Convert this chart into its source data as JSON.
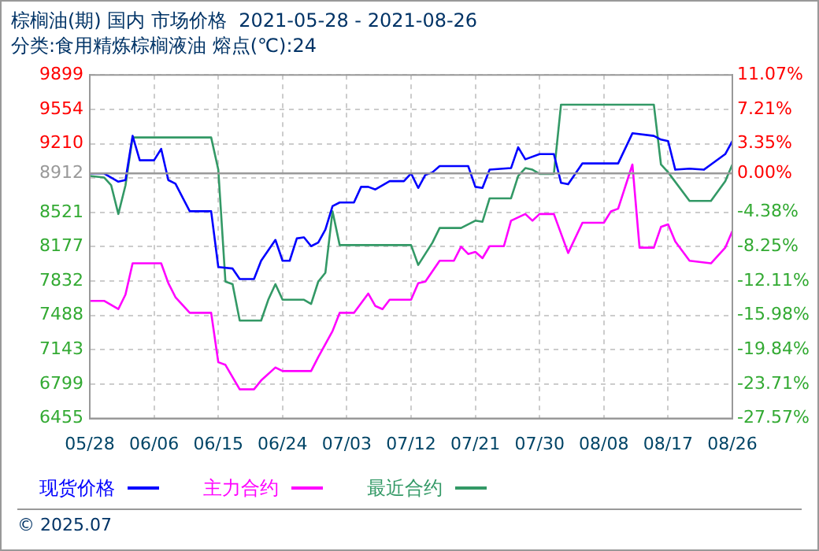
{
  "chart_data": {
    "type": "line",
    "title": "棕榈油(期) 国内 市场价格  2021-05-28 - 2021-08-26",
    "subtitle": "分类:食用精炼棕榈液油 熔点(℃):24",
    "annotations": [
      "© 2025.07"
    ],
    "xlim": [
      "2021-05-28",
      "2021-08-26"
    ],
    "xticks": [
      {
        "value": "2021-05-28",
        "label": "05/28"
      },
      {
        "value": "2021-06-06",
        "label": "06/06"
      },
      {
        "value": "2021-06-15",
        "label": "06/15"
      },
      {
        "value": "2021-06-24",
        "label": "06/24"
      },
      {
        "value": "2021-07-03",
        "label": "07/03"
      },
      {
        "value": "2021-07-12",
        "label": "07/12"
      },
      {
        "value": "2021-07-21",
        "label": "07/21"
      },
      {
        "value": "2021-07-30",
        "label": "07/30"
      },
      {
        "value": "2021-08-08",
        "label": "08/08"
      },
      {
        "value": "2021-08-17",
        "label": "08/17"
      },
      {
        "value": "2021-08-26",
        "label": "08/26"
      }
    ],
    "ylim": [
      6455,
      9899
    ],
    "yticks": [
      6455,
      6799,
      7143,
      7488,
      7832,
      8177,
      8521,
      {
        "value": 8866,
        "label": null
      },
      8912,
      9210,
      9554,
      9899
    ],
    "y2lim": [
      -27.57,
      11.07
    ],
    "y2ticks": [
      {
        "value": -27.57,
        "label": "-27.57%"
      },
      {
        "value": -23.71,
        "label": "-23.71%"
      },
      {
        "value": -19.84,
        "label": "-19.84%"
      },
      {
        "value": -15.98,
        "label": "-15.98%"
      },
      {
        "value": -12.11,
        "label": "-12.11%"
      },
      {
        "value": -8.25,
        "label": "-8.25%"
      },
      {
        "value": -4.38,
        "label": "-4.38%"
      },
      {
        "value": 0,
        "label": "0.00%"
      },
      {
        "value": 3.35,
        "label": "3.35%"
      },
      {
        "value": 7.21,
        "label": "7.21%"
      },
      {
        "value": 11.07,
        "label": "11.07%"
      }
    ],
    "ref_lines": [
      {
        "axis": "y",
        "value": 8912,
        "color": "#999999"
      }
    ],
    "grid": true,
    "legend": "bottom",
    "marker": "none",
    "line_style": "solid",
    "series": [
      {
        "name": "现货价格",
        "color": "#0000ff",
        "x": [
          "2021-05-28",
          "2021-05-30",
          "2021-06-01",
          "2021-06-02",
          "2021-06-03",
          "2021-06-04",
          "2021-06-06",
          "2021-06-07",
          "2021-06-08",
          "2021-06-09",
          "2021-06-11",
          "2021-06-14",
          "2021-06-15",
          "2021-06-17",
          "2021-06-18",
          "2021-06-20",
          "2021-06-21",
          "2021-06-23",
          "2021-06-24",
          "2021-06-25",
          "2021-06-26",
          "2021-06-27",
          "2021-06-28",
          "2021-06-29",
          "2021-06-30",
          "2021-07-01",
          "2021-07-02",
          "2021-07-04",
          "2021-07-05",
          "2021-07-06",
          "2021-07-07",
          "2021-07-09",
          "2021-07-11",
          "2021-07-12",
          "2021-07-13",
          "2021-07-14",
          "2021-07-15",
          "2021-07-16",
          "2021-07-20",
          "2021-07-21",
          "2021-07-22",
          "2021-07-23",
          "2021-07-26",
          "2021-07-27",
          "2021-07-28",
          "2021-07-30",
          "2021-08-01",
          "2021-08-02",
          "2021-08-03",
          "2021-08-05",
          "2021-08-10",
          "2021-08-12",
          "2021-08-15",
          "2021-08-16",
          "2021-08-17",
          "2021-08-18",
          "2021-08-20",
          "2021-08-22",
          "2021-08-23",
          "2021-08-25",
          "2021-08-26"
        ],
        "values": [
          8912,
          8912,
          8829,
          8845,
          9288,
          9043,
          9043,
          9157,
          8845,
          8808,
          8532,
          8532,
          7973,
          7958,
          7853,
          7853,
          8036,
          8245,
          8036,
          8036,
          8260,
          8271,
          8182,
          8219,
          8349,
          8584,
          8620,
          8620,
          8777,
          8777,
          8751,
          8834,
          8834,
          8912,
          8766,
          8897,
          8923,
          8985,
          8985,
          8777,
          8766,
          8949,
          8965,
          9173,
          9053,
          9105,
          9105,
          8818,
          8803,
          9012,
          9012,
          9314,
          9288,
          9251,
          9236,
          8949,
          8960,
          8949,
          9001,
          9105,
          9236
        ]
      },
      {
        "name": "主力合约",
        "color": "#ff00ff",
        "x": [
          "2021-05-28",
          "2021-05-30",
          "2021-06-01",
          "2021-06-02",
          "2021-06-03",
          "2021-06-07",
          "2021-06-08",
          "2021-06-09",
          "2021-06-11",
          "2021-06-14",
          "2021-06-15",
          "2021-06-16",
          "2021-06-18",
          "2021-06-20",
          "2021-06-21",
          "2021-06-23",
          "2021-06-24",
          "2021-06-28",
          "2021-06-29",
          "2021-07-01",
          "2021-07-02",
          "2021-07-04",
          "2021-07-06",
          "2021-07-07",
          "2021-07-08",
          "2021-07-09",
          "2021-07-12",
          "2021-07-13",
          "2021-07-14",
          "2021-07-16",
          "2021-07-18",
          "2021-07-19",
          "2021-07-20",
          "2021-07-21",
          "2021-07-22",
          "2021-07-23",
          "2021-07-25",
          "2021-07-26",
          "2021-07-28",
          "2021-07-29",
          "2021-07-30",
          "2021-08-01",
          "2021-08-03",
          "2021-08-05",
          "2021-08-08",
          "2021-08-09",
          "2021-08-10",
          "2021-08-12",
          "2021-08-13",
          "2021-08-15",
          "2021-08-16",
          "2021-08-17",
          "2021-08-18",
          "2021-08-20",
          "2021-08-23",
          "2021-08-25",
          "2021-08-26"
        ],
        "values": [
          7634,
          7634,
          7551,
          7697,
          8010,
          8010,
          7812,
          7671,
          7514,
          7514,
          7019,
          6992,
          6747,
          6747,
          6836,
          6966,
          6930,
          6930,
          7071,
          7331,
          7514,
          7514,
          7707,
          7582,
          7551,
          7645,
          7645,
          7812,
          7827,
          8036,
          8036,
          8177,
          8104,
          8125,
          8062,
          8182,
          8182,
          8438,
          8505,
          8438,
          8505,
          8505,
          8114,
          8417,
          8417,
          8532,
          8558,
          9001,
          8167,
          8167,
          8375,
          8401,
          8229,
          8036,
          8010,
          8167,
          8334
        ]
      },
      {
        "name": "最近合约",
        "color": "#339966",
        "x": [
          "2021-05-28",
          "2021-05-30",
          "2021-05-31",
          "2021-06-01",
          "2021-06-02",
          "2021-06-03",
          "2021-06-14",
          "2021-06-15",
          "2021-06-16",
          "2021-06-17",
          "2021-06-18",
          "2021-06-21",
          "2021-06-22",
          "2021-06-23",
          "2021-06-24",
          "2021-06-27",
          "2021-06-28",
          "2021-06-29",
          "2021-06-30",
          "2021-07-01",
          "2021-07-02",
          "2021-07-12",
          "2021-07-13",
          "2021-07-15",
          "2021-07-16",
          "2021-07-19",
          "2021-07-21",
          "2021-07-22",
          "2021-07-23",
          "2021-07-26",
          "2021-07-27",
          "2021-07-28",
          "2021-07-29",
          "2021-07-30",
          "2021-08-01",
          "2021-08-02",
          "2021-08-15",
          "2021-08-16",
          "2021-08-17",
          "2021-08-20",
          "2021-08-23",
          "2021-08-25",
          "2021-08-26"
        ],
        "values": [
          8886,
          8871,
          8792,
          8505,
          8792,
          9272,
          9272,
          8949,
          7827,
          7801,
          7436,
          7436,
          7645,
          7801,
          7645,
          7645,
          7603,
          7827,
          7916,
          8532,
          8193,
          8193,
          7994,
          8219,
          8365,
          8365,
          8438,
          8427,
          8662,
          8662,
          8886,
          8965,
          8949,
          8907,
          8907,
          9601,
          9601,
          9001,
          8923,
          8636,
          8636,
          8834,
          9001
        ]
      }
    ]
  }
}
